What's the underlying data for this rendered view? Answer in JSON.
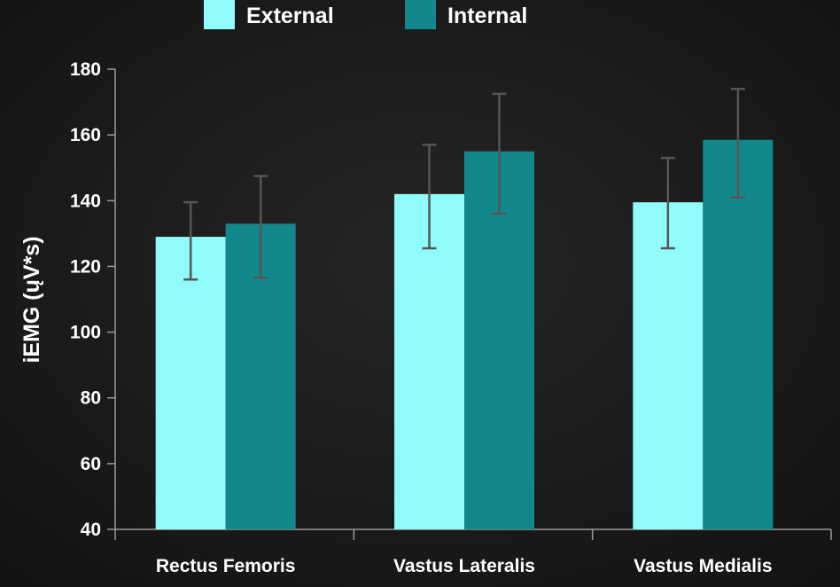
{
  "chart_data": {
    "type": "bar",
    "categories": [
      "Rectus Femoris",
      "Vastus Lateralis",
      "Vastus Medialis"
    ],
    "series": [
      {
        "name": "External",
        "color": "#8ffbfb",
        "values": [
          129,
          142,
          139.5
        ],
        "error": [
          [
            116,
            139.5
          ],
          [
            125.5,
            157
          ],
          [
            125.5,
            153
          ]
        ]
      },
      {
        "name": "Internal",
        "color": "#12878c",
        "values": [
          133,
          155,
          158.5
        ],
        "error": [
          [
            116.5,
            147.5
          ],
          [
            136,
            172.5
          ],
          [
            141,
            174
          ]
        ]
      }
    ],
    "ylabel": "iEMG (ųV*s)",
    "ylim": [
      40,
      180
    ],
    "yticks": [
      40,
      60,
      80,
      100,
      120,
      140,
      160,
      180
    ],
    "legend_position": "top-left",
    "grid": false,
    "background": "#1a1a1a",
    "axis_color": "#9a9a9a",
    "error_bar_color": "#555555"
  }
}
